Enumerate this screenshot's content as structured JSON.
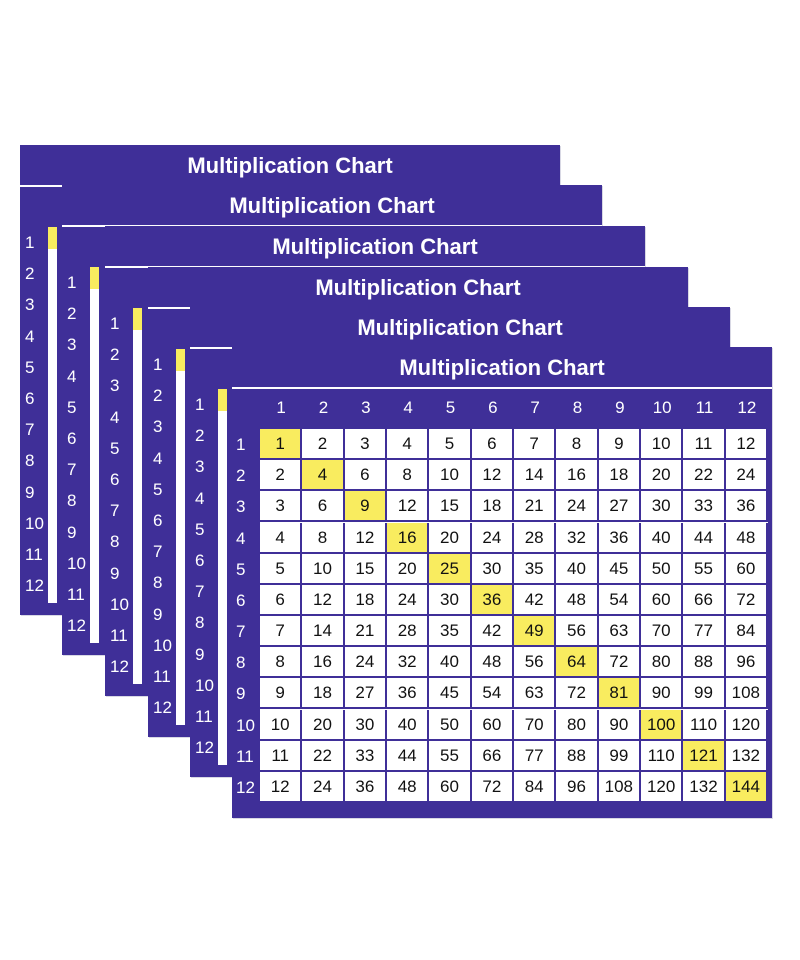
{
  "title": "Multiplication Chart",
  "headers": [
    "1",
    "2",
    "3",
    "4",
    "5",
    "6",
    "7",
    "8",
    "9",
    "10",
    "11",
    "12"
  ],
  "grid": [
    [
      "1",
      "2",
      "3",
      "4",
      "5",
      "6",
      "7",
      "8",
      "9",
      "10",
      "11",
      "12"
    ],
    [
      "2",
      "4",
      "6",
      "8",
      "10",
      "12",
      "14",
      "16",
      "18",
      "20",
      "22",
      "24"
    ],
    [
      "3",
      "6",
      "9",
      "12",
      "15",
      "18",
      "21",
      "24",
      "27",
      "30",
      "33",
      "36"
    ],
    [
      "4",
      "8",
      "12",
      "16",
      "20",
      "24",
      "28",
      "32",
      "36",
      "40",
      "44",
      "48"
    ],
    [
      "5",
      "10",
      "15",
      "20",
      "25",
      "30",
      "35",
      "40",
      "45",
      "50",
      "55",
      "60"
    ],
    [
      "6",
      "12",
      "18",
      "24",
      "30",
      "36",
      "42",
      "48",
      "54",
      "60",
      "66",
      "72"
    ],
    [
      "7",
      "14",
      "21",
      "28",
      "35",
      "42",
      "49",
      "56",
      "63",
      "70",
      "77",
      "84"
    ],
    [
      "8",
      "16",
      "24",
      "32",
      "40",
      "48",
      "56",
      "64",
      "72",
      "80",
      "88",
      "96"
    ],
    [
      "9",
      "18",
      "27",
      "36",
      "45",
      "54",
      "63",
      "72",
      "81",
      "90",
      "99",
      "108"
    ],
    [
      "10",
      "20",
      "30",
      "40",
      "50",
      "60",
      "70",
      "80",
      "90",
      "100",
      "110",
      "120"
    ],
    [
      "11",
      "22",
      "33",
      "44",
      "55",
      "66",
      "77",
      "88",
      "99",
      "110",
      "121",
      "132"
    ],
    [
      "12",
      "24",
      "36",
      "48",
      "60",
      "72",
      "84",
      "96",
      "108",
      "120",
      "132",
      "144"
    ]
  ],
  "colors": {
    "card_background": "#3f2f98",
    "cell_background": "#ffffff",
    "diagonal_highlight": "#f9ec5f"
  }
}
